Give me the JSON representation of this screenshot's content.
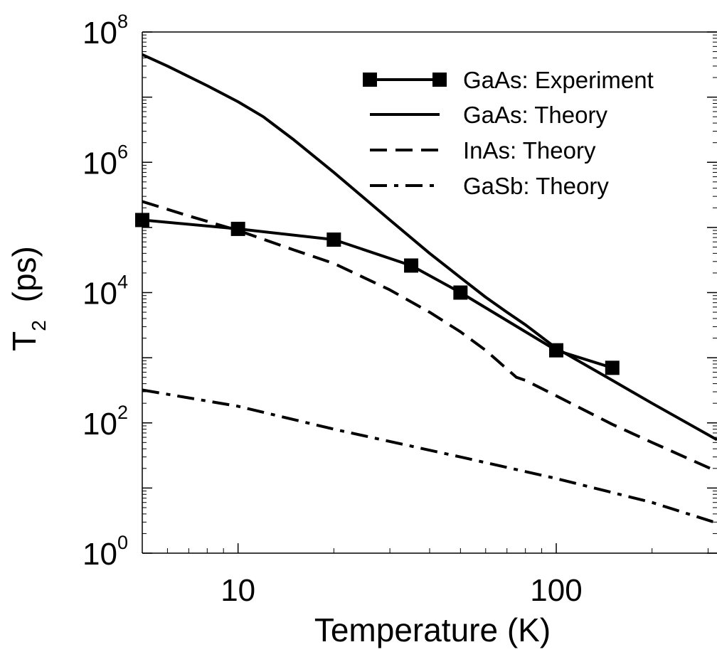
{
  "chart_data": {
    "type": "line",
    "title": "",
    "xlabel": "Temperature (K)",
    "ylabel": {
      "main": "T",
      "sub": "2",
      "units": "(ps)"
    },
    "x_scale": "log",
    "y_scale": "log",
    "xlim": [
      5,
      320
    ],
    "ylim": [
      1,
      100000000
    ],
    "x_ticks": [
      {
        "value": 10,
        "label": "10"
      },
      {
        "value": 100,
        "label": "100"
      }
    ],
    "y_ticks": [
      {
        "value": 1,
        "base": "10",
        "exp": "0"
      },
      {
        "value": 100,
        "base": "10",
        "exp": "2"
      },
      {
        "value": 10000,
        "base": "10",
        "exp": "4"
      },
      {
        "value": 1000000,
        "base": "10",
        "exp": "6"
      },
      {
        "value": 100000000,
        "base": "10",
        "exp": "8"
      }
    ],
    "legend_position": "top-right",
    "series": [
      {
        "name": "GaAs: Experiment",
        "style": "solid-square-markers",
        "x": [
          5,
          10,
          20,
          35,
          50,
          100,
          150
        ],
        "y": [
          130000,
          95000,
          65000,
          26000,
          10000,
          1300,
          700
        ]
      },
      {
        "name": "GaAs: Theory",
        "style": "solid",
        "x": [
          5,
          6,
          8,
          10,
          12,
          15,
          20,
          30,
          40,
          50,
          60,
          70,
          80,
          100,
          150,
          200,
          320
        ],
        "y": [
          45000000,
          30000000,
          15000000,
          8500000,
          5000000,
          2200000,
          700000,
          130000,
          40000,
          17000,
          8500,
          5000,
          3200,
          1400,
          450,
          200,
          55
        ]
      },
      {
        "name": "InAs: Theory",
        "style": "dashed",
        "x": [
          5,
          7,
          10,
          15,
          20,
          30,
          40,
          50,
          60,
          75,
          80,
          100,
          150,
          200,
          320
        ],
        "y": [
          250000,
          150000,
          90000,
          45000,
          28000,
          11000,
          5000,
          2500,
          1300,
          500,
          450,
          260,
          95,
          50,
          18
        ]
      },
      {
        "name": "GaSb: Theory",
        "style": "dashdot",
        "x": [
          5,
          10,
          20,
          50,
          100,
          200,
          320
        ],
        "y": [
          320,
          180,
          80,
          30,
          14,
          6,
          2.9
        ]
      }
    ]
  }
}
